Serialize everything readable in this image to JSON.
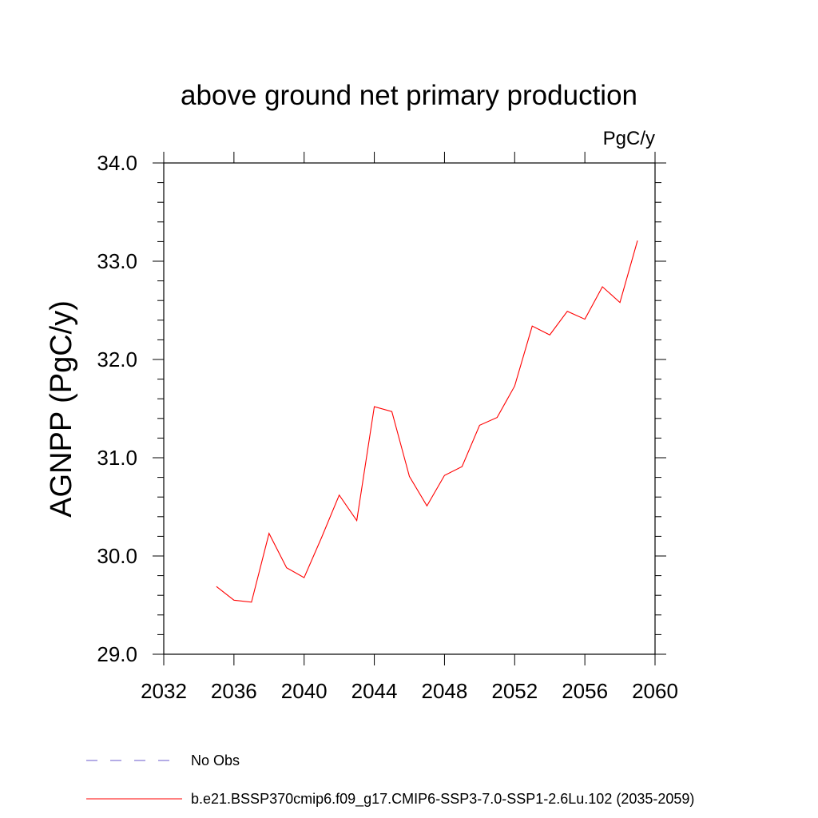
{
  "chart_data": {
    "type": "line",
    "title": "above ground net primary production",
    "units_label": "PgC/y",
    "xlabel": "",
    "ylabel": "AGNPP  (PgC/y)",
    "xlim": [
      2032,
      2060
    ],
    "ylim": [
      29.0,
      34.0
    ],
    "x_ticks": [
      2032,
      2036,
      2040,
      2044,
      2048,
      2052,
      2056,
      2060
    ],
    "x_tick_labels": [
      "2032",
      "2036",
      "2040",
      "2044",
      "2048",
      "2052",
      "2056",
      "2060"
    ],
    "y_ticks": [
      29.0,
      30.0,
      31.0,
      32.0,
      33.0,
      34.0
    ],
    "y_tick_labels": [
      "29.0",
      "30.0",
      "31.0",
      "32.0",
      "33.0",
      "34.0"
    ],
    "grid": false,
    "legend_position": "bottom-left",
    "legend": [
      {
        "label": "No Obs",
        "color": "#6a5acd",
        "style": "dashed"
      },
      {
        "label": "b.e21.BSSP370cmip6.f09_g17.CMIP6-SSP3-7.0-SSP1-2.6Lu.102 (2035-2059)",
        "color": "#ff0000",
        "style": "solid"
      }
    ],
    "series": [
      {
        "name": "b.e21.BSSP370cmip6.f09_g17.CMIP6-SSP3-7.0-SSP1-2.6Lu.102 (2035-2059)",
        "color": "#ff0000",
        "x": [
          2035,
          2036,
          2037,
          2038,
          2039,
          2040,
          2041,
          2042,
          2043,
          2044,
          2045,
          2046,
          2047,
          2048,
          2049,
          2050,
          2051,
          2052,
          2053,
          2054,
          2055,
          2056,
          2057,
          2058,
          2059
        ],
        "y": [
          29.69,
          29.55,
          29.53,
          30.23,
          29.88,
          29.78,
          30.19,
          30.62,
          30.36,
          31.52,
          31.47,
          30.81,
          30.51,
          30.82,
          30.91,
          31.33,
          31.41,
          31.73,
          32.34,
          32.25,
          32.49,
          32.41,
          32.74,
          32.58,
          33.21
        ]
      }
    ]
  }
}
